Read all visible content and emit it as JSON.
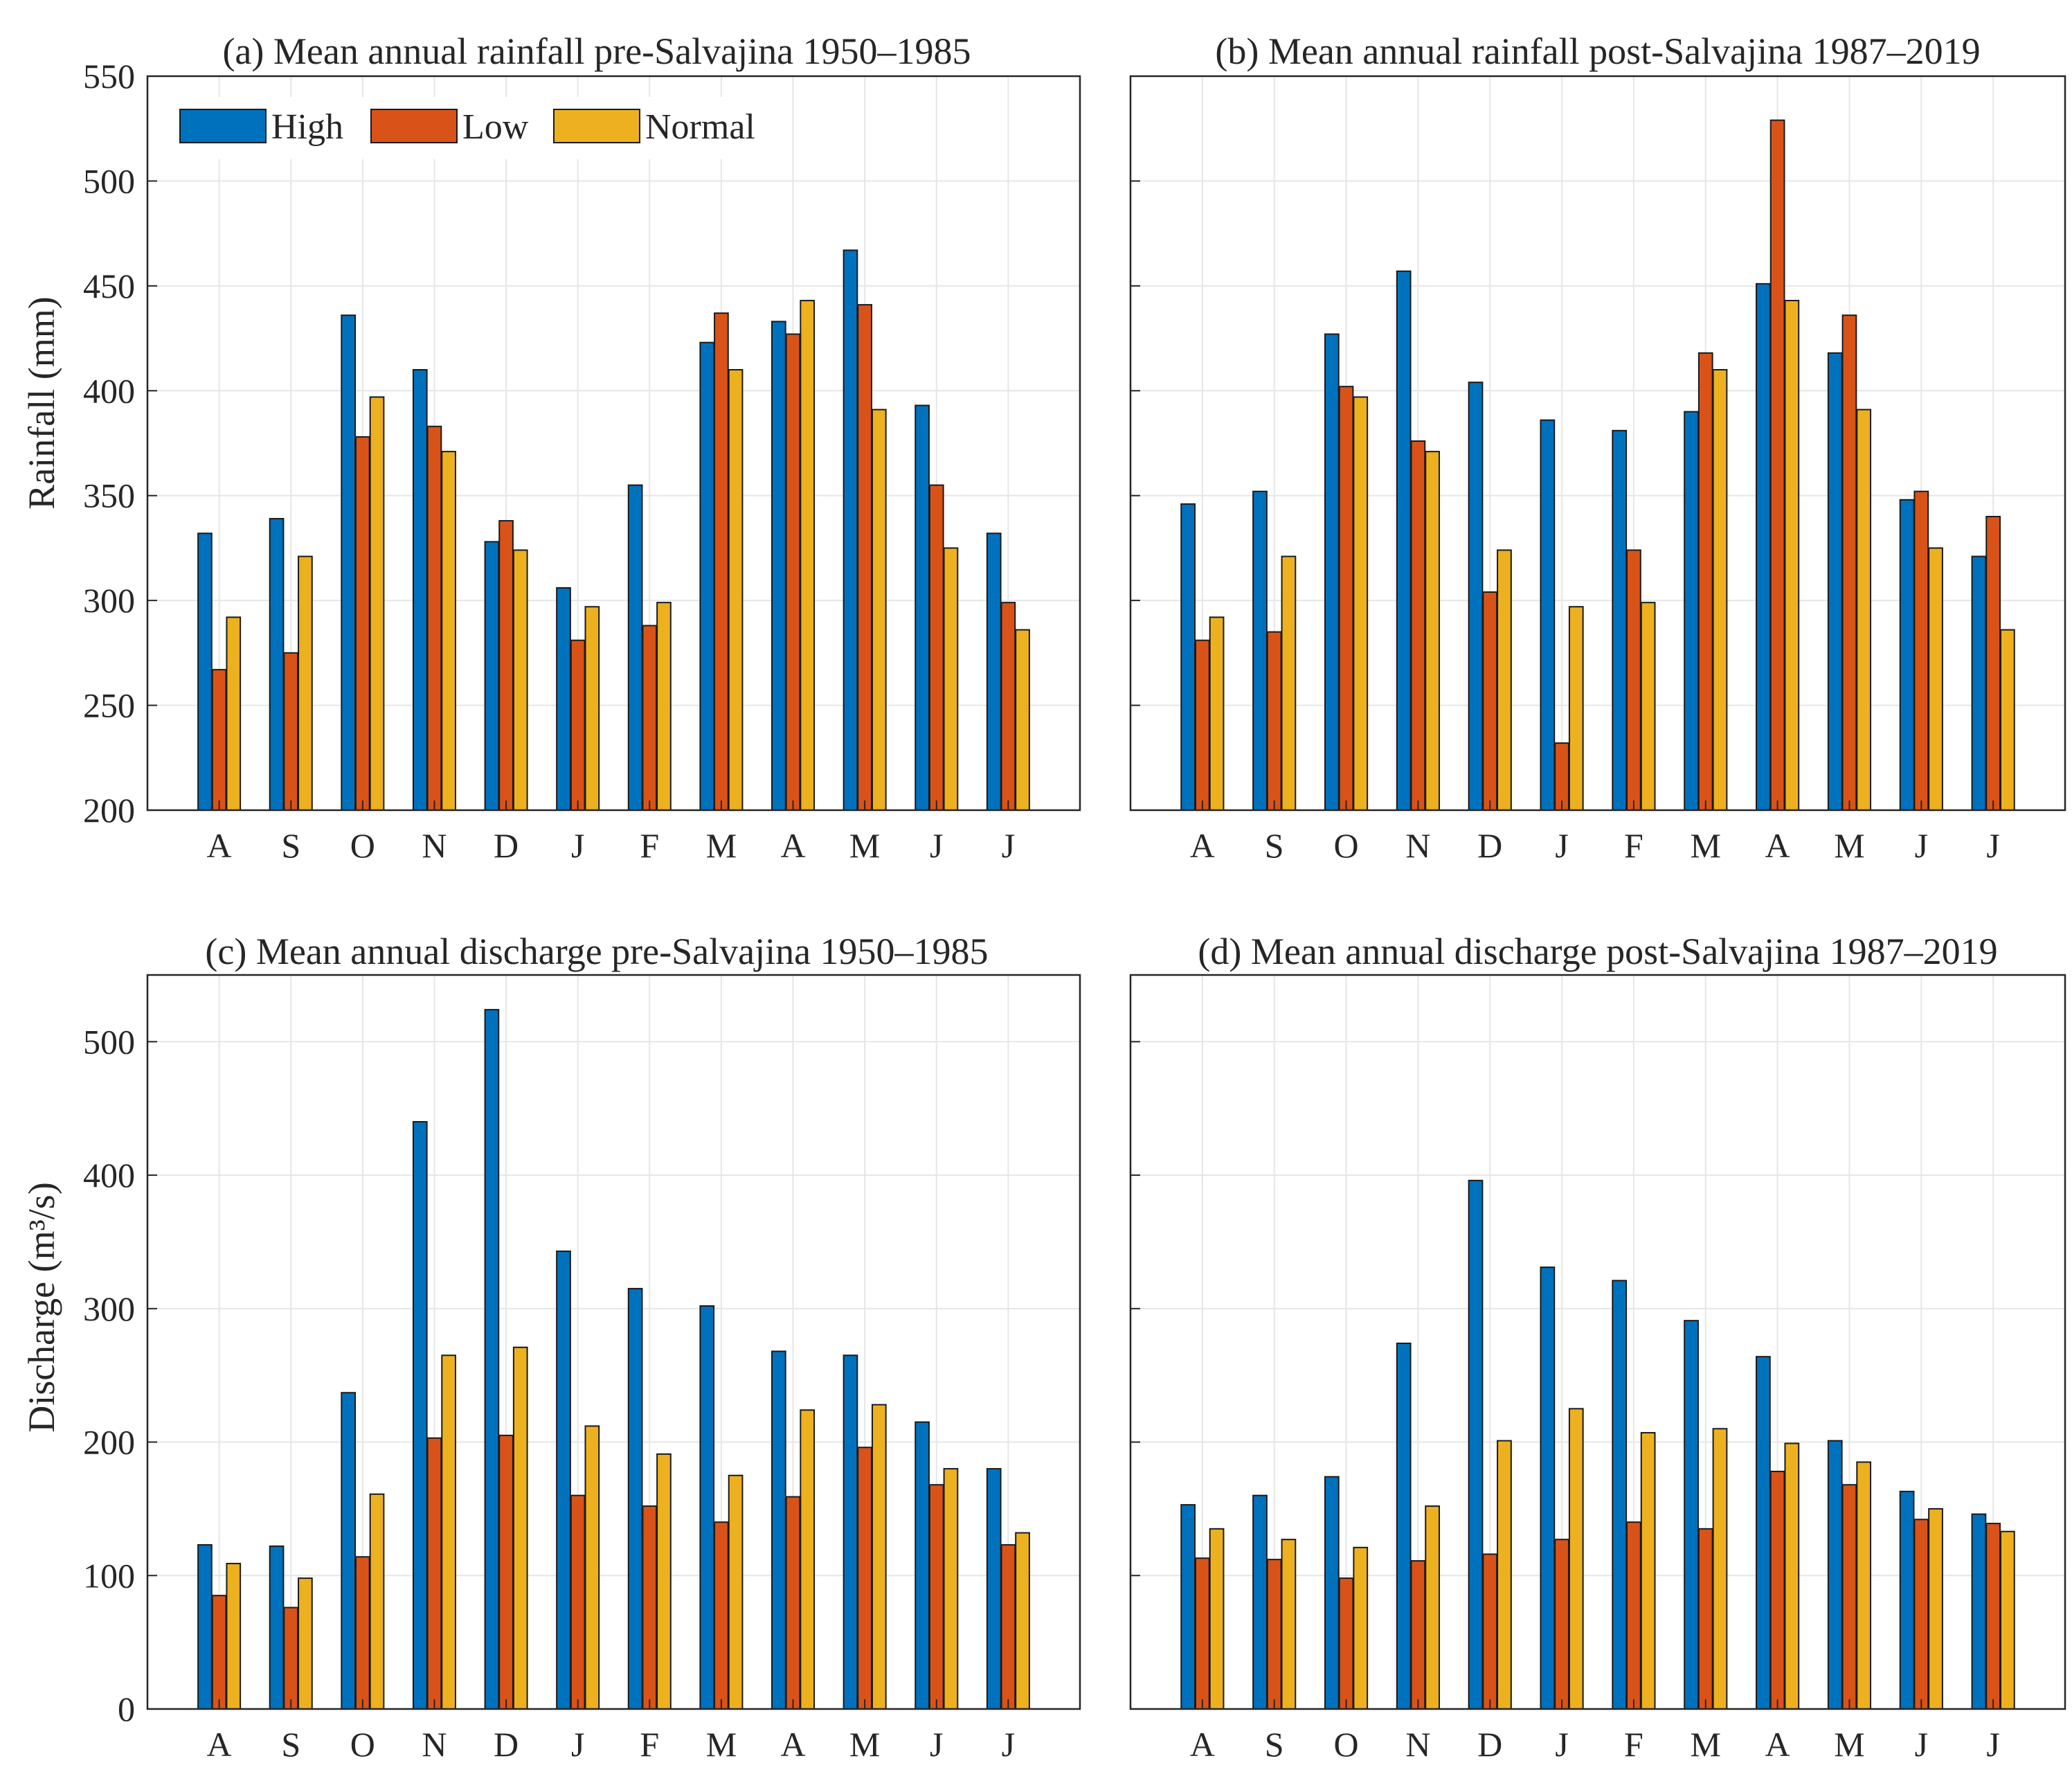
{
  "colors": {
    "High": "#0072BD",
    "Low": "#D95319",
    "Normal": "#EDB120"
  },
  "legend": {
    "entries": [
      "High",
      "Low",
      "Normal"
    ]
  },
  "chart_data": [
    {
      "type": "bar",
      "title": "(a) Mean annual rainfall pre-Salvajina 1950–1985",
      "xlabel": "",
      "ylabel": "Rainfall (mm)",
      "ylim": [
        200,
        550
      ],
      "yticks": [
        "200",
        "250",
        "300",
        "350",
        "400",
        "450",
        "500",
        "550"
      ],
      "categories": [
        "A",
        "S",
        "O",
        "N",
        "D",
        "J",
        "F",
        "M",
        "A",
        "M",
        "J",
        "J"
      ],
      "grid": true,
      "legend_position": "top-left",
      "series": [
        {
          "name": "High",
          "values": [
            332,
            339,
            436,
            410,
            328,
            306,
            355,
            423,
            433,
            467,
            393,
            332
          ]
        },
        {
          "name": "Low",
          "values": [
            267,
            275,
            378,
            383,
            338,
            281,
            288,
            437,
            427,
            441,
            355,
            299
          ]
        },
        {
          "name": "Normal",
          "values": [
            292,
            321,
            397,
            371,
            324,
            297,
            299,
            410,
            443,
            391,
            325,
            286
          ]
        }
      ]
    },
    {
      "type": "bar",
      "title": "(b) Mean annual rainfall post-Salvajina 1987–2019",
      "xlabel": "",
      "ylabel": "",
      "ylim": [
        200,
        550
      ],
      "yticks": [],
      "categories": [
        "A",
        "S",
        "O",
        "N",
        "D",
        "J",
        "F",
        "M",
        "A",
        "M",
        "J",
        "J"
      ],
      "grid": true,
      "series": [
        {
          "name": "High",
          "values": [
            346,
            352,
            427,
            457,
            404,
            386,
            381,
            390,
            451,
            418,
            348,
            321
          ]
        },
        {
          "name": "Low",
          "values": [
            281,
            285,
            402,
            376,
            304,
            232,
            324,
            418,
            529,
            436,
            352,
            340
          ]
        },
        {
          "name": "Normal",
          "values": [
            292,
            321,
            397,
            371,
            324,
            297,
            299,
            410,
            443,
            391,
            325,
            286
          ]
        }
      ]
    },
    {
      "type": "bar",
      "title": "(c) Mean annual discharge pre-Salvajina 1950–1985",
      "xlabel": "",
      "ylabel": "Discharge (m³/s)",
      "ylim": [
        0,
        550
      ],
      "yticks": [
        "0",
        "100",
        "200",
        "300",
        "400",
        "500"
      ],
      "categories": [
        "A",
        "S",
        "O",
        "N",
        "D",
        "J",
        "F",
        "M",
        "A",
        "M",
        "J",
        "J"
      ],
      "grid": true,
      "series": [
        {
          "name": "High",
          "values": [
            123,
            122,
            237,
            440,
            524,
            343,
            315,
            302,
            268,
            265,
            215,
            180
          ]
        },
        {
          "name": "Low",
          "values": [
            85,
            76,
            114,
            203,
            205,
            160,
            152,
            140,
            159,
            196,
            168,
            123
          ]
        },
        {
          "name": "Normal",
          "values": [
            109,
            98,
            161,
            265,
            271,
            212,
            191,
            175,
            224,
            228,
            180,
            132
          ]
        }
      ]
    },
    {
      "type": "bar",
      "title": "(d) Mean annual discharge post-Salvajina 1987–2019",
      "xlabel": "",
      "ylabel": "",
      "ylim": [
        0,
        550
      ],
      "yticks": [],
      "categories": [
        "A",
        "S",
        "O",
        "N",
        "D",
        "J",
        "F",
        "M",
        "A",
        "M",
        "J",
        "J"
      ],
      "grid": true,
      "series": [
        {
          "name": "High",
          "values": [
            153,
            160,
            174,
            274,
            396,
            331,
            321,
            291,
            264,
            201,
            163,
            146
          ]
        },
        {
          "name": "Low",
          "values": [
            113,
            112,
            98,
            111,
            116,
            127,
            140,
            135,
            178,
            168,
            142,
            139
          ]
        },
        {
          "name": "Normal",
          "values": [
            135,
            127,
            121,
            152,
            201,
            225,
            207,
            210,
            199,
            185,
            150,
            133
          ]
        }
      ]
    }
  ]
}
